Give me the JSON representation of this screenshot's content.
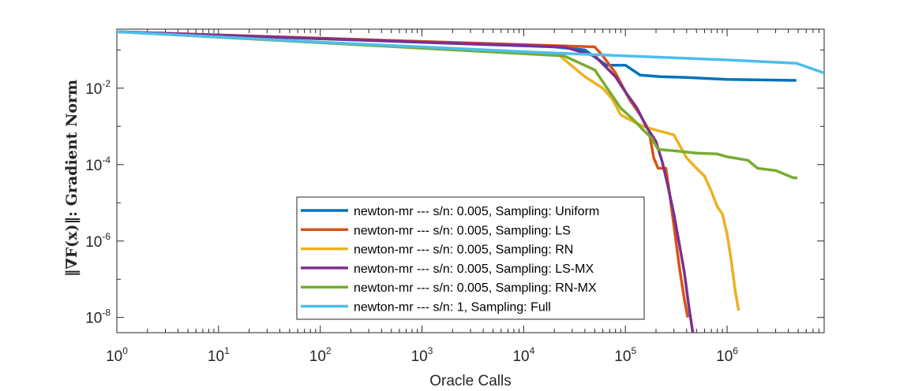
{
  "chart_data": {
    "type": "line",
    "xscale": "log",
    "yscale": "log",
    "xlabel": "Oracle Calls",
    "ylabel": {
      "main": "‖∇F(x)‖: Gradient Norm"
    },
    "xlim": [
      1,
      9000000
    ],
    "ylim": [
      4e-09,
      0.35
    ],
    "x_ticks": [
      {
        "base": "10",
        "exp": "0",
        "value": 1
      },
      {
        "base": "10",
        "exp": "1",
        "value": 10
      },
      {
        "base": "10",
        "exp": "2",
        "value": 100
      },
      {
        "base": "10",
        "exp": "3",
        "value": 1000
      },
      {
        "base": "10",
        "exp": "4",
        "value": 10000
      },
      {
        "base": "10",
        "exp": "5",
        "value": 100000
      },
      {
        "base": "10",
        "exp": "6",
        "value": 1000000
      }
    ],
    "y_ticks": [
      {
        "base": "10",
        "exp": "-8",
        "value": 1e-08
      },
      {
        "base": "10",
        "exp": "-6",
        "value": 1e-06
      },
      {
        "base": "10",
        "exp": "-4",
        "value": 0.0001
      },
      {
        "base": "10",
        "exp": "-2",
        "value": 0.01
      }
    ],
    "legend_position": "bottom-center",
    "series": [
      {
        "name": "newton-mr --- s/n: 0.005, Sampling: Uniform",
        "color": "#0072BD",
        "points": [
          [
            1,
            0.3
          ],
          [
            20000,
            0.12
          ],
          [
            40000,
            0.1
          ],
          [
            65000,
            0.04
          ],
          [
            100000,
            0.04
          ],
          [
            140000,
            0.022
          ],
          [
            220000,
            0.02
          ],
          [
            400000,
            0.019
          ],
          [
            1000000,
            0.017
          ],
          [
            4800000,
            0.016
          ]
        ]
      },
      {
        "name": "newton-mr --- s/n: 0.005, Sampling: LS",
        "color": "#D95319",
        "points": [
          [
            1,
            0.3
          ],
          [
            20000,
            0.13
          ],
          [
            50000,
            0.12
          ],
          [
            60000,
            0.07
          ],
          [
            80000,
            0.025
          ],
          [
            110000,
            0.005
          ],
          [
            140000,
            0.002
          ],
          [
            170000,
            0.0008
          ],
          [
            190000,
            0.00015
          ],
          [
            210000,
            8e-05
          ],
          [
            250000,
            8e-05
          ],
          [
            270000,
            2e-05
          ],
          [
            300000,
            2.5e-06
          ],
          [
            340000,
            2e-07
          ],
          [
            380000,
            3e-08
          ],
          [
            410000,
            1e-08
          ]
        ]
      },
      {
        "name": "newton-mr --- s/n: 0.005, Sampling: RN",
        "color": "#EDB120",
        "points": [
          [
            1,
            0.3
          ],
          [
            22000,
            0.075
          ],
          [
            40000,
            0.02
          ],
          [
            60000,
            0.01
          ],
          [
            75000,
            0.005
          ],
          [
            90000,
            0.002
          ],
          [
            110000,
            0.0015
          ],
          [
            150000,
            0.001
          ],
          [
            200000,
            0.0008
          ],
          [
            300000,
            0.0006
          ],
          [
            400000,
            0.00015
          ],
          [
            500000,
            8e-05
          ],
          [
            600000,
            5e-05
          ],
          [
            700000,
            2e-05
          ],
          [
            800000,
            8e-06
          ],
          [
            900000,
            5e-06
          ],
          [
            1000000,
            1.5e-06
          ],
          [
            1100000,
            3e-07
          ],
          [
            1200000,
            5e-08
          ],
          [
            1300000,
            1.5e-08
          ]
        ]
      },
      {
        "name": "newton-mr --- s/n: 0.005, Sampling: LS-MX",
        "color": "#7E2F8E",
        "points": [
          [
            1,
            0.3
          ],
          [
            25000,
            0.12
          ],
          [
            50000,
            0.07
          ],
          [
            80000,
            0.02
          ],
          [
            100000,
            0.008
          ],
          [
            130000,
            0.003
          ],
          [
            160000,
            0.001
          ],
          [
            200000,
            0.0004
          ],
          [
            230000,
            0.00012
          ],
          [
            260000,
            3e-05
          ],
          [
            300000,
            5e-06
          ],
          [
            340000,
            8e-07
          ],
          [
            380000,
            1.5e-07
          ],
          [
            420000,
            2e-08
          ],
          [
            460000,
            4e-09
          ]
        ]
      },
      {
        "name": "newton-mr --- s/n: 0.005, Sampling: RN-MX",
        "color": "#77AC30",
        "points": [
          [
            1,
            0.3
          ],
          [
            25000,
            0.07
          ],
          [
            50000,
            0.03
          ],
          [
            70000,
            0.008
          ],
          [
            90000,
            0.003
          ],
          [
            120000,
            0.0015
          ],
          [
            150000,
            0.0008
          ],
          [
            180000,
            0.0005
          ],
          [
            210000,
            0.00025
          ],
          [
            300000,
            0.00023
          ],
          [
            500000,
            0.0002
          ],
          [
            800000,
            0.00019
          ],
          [
            1000000,
            0.00016
          ],
          [
            1600000,
            0.00013
          ],
          [
            2000000,
            8e-05
          ],
          [
            3000000,
            7e-05
          ],
          [
            4500000,
            4.5e-05
          ],
          [
            4900000,
            4.5e-05
          ]
        ]
      },
      {
        "name": "newton-mr --- s/n: 1, Sampling: Full",
        "color": "#4DBEEE",
        "points": [
          [
            1,
            0.3
          ],
          [
            100,
            0.16
          ],
          [
            10000,
            0.09
          ],
          [
            100000,
            0.07
          ],
          [
            1000000,
            0.055
          ],
          [
            4800000,
            0.045
          ],
          [
            9000000,
            0.025
          ]
        ]
      }
    ]
  }
}
